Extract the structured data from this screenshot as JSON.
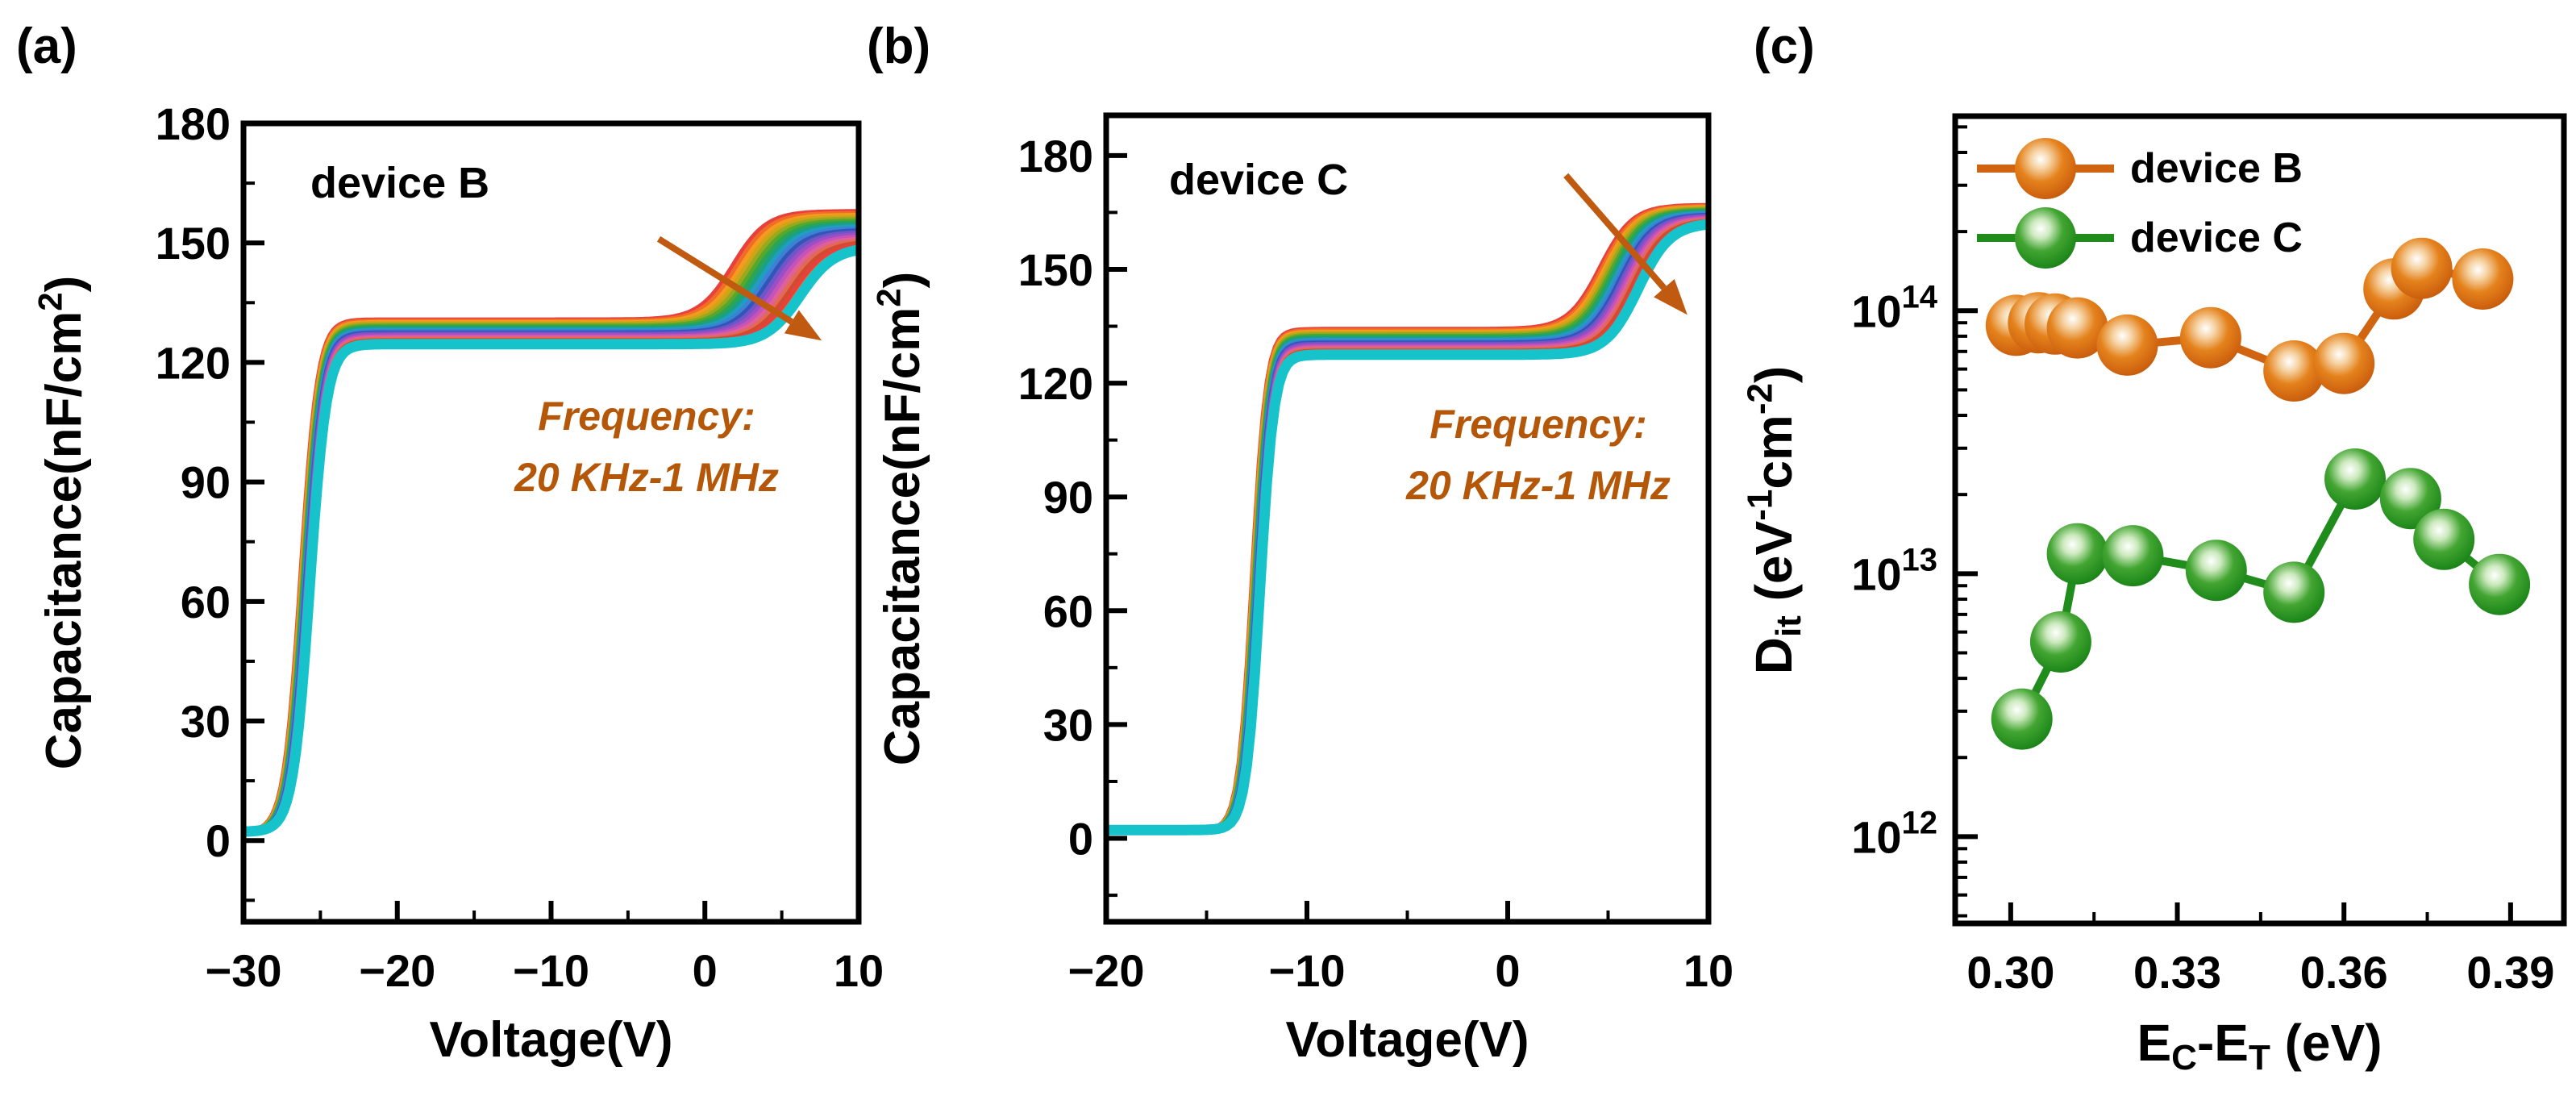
{
  "panels": {
    "a": {
      "letter": "(a)",
      "device_label": "device B",
      "annotation_line1": "Frequency:",
      "annotation_line2": "20 KHz-1 MHz"
    },
    "b": {
      "letter": "(b)",
      "device_label": "device C",
      "annotation_line1": "Frequency:",
      "annotation_line2": "20 KHz-1 MHz"
    },
    "c": {
      "letter": "(c)"
    }
  },
  "colors": {
    "annotation_text": "#b45708",
    "arrow": "#c05a10",
    "device_b": "#d06410",
    "device_c": "#1f8c1b",
    "axis": "#000000"
  },
  "chart_data": [
    {
      "type": "line",
      "panel": "a",
      "title": "device B",
      "xlabel": "Voltage(V)",
      "ylabel_segments": [
        [
          "Capacitance(nF/cm",
          ""
        ],
        [
          "2",
          "sup"
        ],
        [
          ")",
          ""
        ]
      ],
      "xlim": [
        -30,
        10
      ],
      "xticks": [
        -30,
        -20,
        -10,
        0,
        10
      ],
      "xminor": [
        -25,
        -15,
        -5,
        5
      ],
      "ylim": [
        -20.4,
        180
      ],
      "yticks": [
        0,
        30,
        60,
        90,
        120,
        150,
        180
      ],
      "yminor": [
        -15,
        15,
        45,
        75,
        105,
        135,
        165
      ],
      "annotation": [
        "Frequency:",
        "20 KHz-1 MHz"
      ],
      "arrow": {
        "x1": -3.0,
        "y1": 151,
        "x2": 7.6,
        "y2": 125.5
      },
      "curve_family": {
        "n": 20,
        "frequency_range": "20 KHz-1 MHz",
        "base": 2.2,
        "rise1_center_first": -26.3,
        "rise1_center_last": -25.7,
        "rise1_width": 0.55,
        "plateau_first": 130.8,
        "plateau_last": 124.6,
        "rise2_center_first": 1.8,
        "rise2_center_last": 6.2,
        "rise2_width": 1.1,
        "final_first": 158,
        "final_last": 149
      },
      "palette": [
        "#e8413c",
        "#f06c28",
        "#f59a1c",
        "#cfa418",
        "#9aa81e",
        "#55a82c",
        "#2aa455",
        "#1ba083",
        "#1f9ec4",
        "#3f7fd4",
        "#3056b8",
        "#6f55c8",
        "#9b4fc4",
        "#c653b8",
        "#e0609a",
        "#e06a55",
        "#d44a30"
      ],
      "last_curve_color": "#17c3cb",
      "curve_width": 5,
      "last_curve_width": 13
    },
    {
      "type": "line",
      "panel": "b",
      "title": "device C",
      "xlabel": "Voltage(V)",
      "ylabel_segments": [
        [
          "Capacitance(nF/cm",
          ""
        ],
        [
          "2",
          "sup"
        ],
        [
          ")",
          ""
        ]
      ],
      "xlim": [
        -20,
        10
      ],
      "xticks": [
        -20,
        -10,
        0,
        10
      ],
      "xminor": [
        -15,
        -5,
        5
      ],
      "ylim": [
        -22,
        190.6
      ],
      "yticks": [
        0,
        30,
        60,
        90,
        120,
        150,
        180
      ],
      "yminor": [
        -15,
        15,
        45,
        75,
        105,
        135,
        165
      ],
      "annotation": [
        "Frequency:",
        "20 KHz-1 MHz"
      ],
      "arrow": {
        "x1": 2.9,
        "y1": 174.8,
        "x2": 8.95,
        "y2": 138
      },
      "curve_family": {
        "n": 20,
        "frequency_range": "20 KHz-1 MHz",
        "base": 2.2,
        "rise1_center_first": -12.75,
        "rise1_center_last": -12.35,
        "rise1_width": 0.35,
        "plateau_first": 134.3,
        "plateau_last": 127.5,
        "rise2_center_first": 4.6,
        "rise2_center_last": 6.5,
        "rise2_width": 0.8,
        "final_first": 167,
        "final_last": 162.3
      },
      "palette": [
        "#e8413c",
        "#f06c28",
        "#f59a1c",
        "#cfa418",
        "#9aa81e",
        "#55a82c",
        "#2aa455",
        "#1ba083",
        "#1f9ec4",
        "#3f7fd4",
        "#3056b8",
        "#6f55c8",
        "#9b4fc4",
        "#c653b8",
        "#e0609a",
        "#e06a55",
        "#d44a30"
      ],
      "last_curve_color": "#17c3cb",
      "curve_width": 5,
      "last_curve_width": 13
    },
    {
      "type": "scatter",
      "panel": "c",
      "xlabel_segments": [
        [
          "E",
          ""
        ],
        [
          "C",
          "sub"
        ],
        [
          "-E",
          ""
        ],
        [
          "T",
          "sub"
        ],
        [
          " (eV)",
          ""
        ]
      ],
      "ylabel_segments": [
        [
          "D",
          ""
        ],
        [
          "it",
          "sub"
        ],
        [
          " (eV",
          ""
        ],
        [
          "-1",
          "sup"
        ],
        [
          "cm",
          ""
        ],
        [
          "-2",
          "sup"
        ],
        [
          ")",
          ""
        ]
      ],
      "xlim": [
        0.29,
        0.3996
      ],
      "xticks": [
        0.3,
        0.33,
        0.36,
        0.39
      ],
      "xminor": [
        0.315,
        0.345,
        0.375
      ],
      "ylog_exp_lim": [
        11.67,
        14.74
      ],
      "yticks_exp": [
        12,
        13,
        14
      ],
      "legend_position": "top-left",
      "series": [
        {
          "name": "device B",
          "color": "#d06410",
          "x": [
            0.301,
            0.305,
            0.308,
            0.312,
            0.321,
            0.336,
            0.351,
            0.36,
            0.369,
            0.374,
            0.385
          ],
          "y": [
            88000000000000.0,
            90000000000000.0,
            89000000000000.0,
            86000000000000.0,
            74000000000000.0,
            79000000000000.0,
            59000000000000.0,
            63000000000000.0,
            121000000000000.0,
            145000000000000.0,
            132000000000000.0
          ]
        },
        {
          "name": "device C",
          "color": "#1f8c1b",
          "x": [
            0.302,
            0.309,
            0.312,
            0.322,
            0.337,
            0.351,
            0.362,
            0.372,
            0.378,
            0.388
          ],
          "y": [
            2800000000000.0,
            5500000000000.0,
            11900000000000.0,
            11700000000000.0,
            10300000000000.0,
            8500000000000.0,
            22900000000000.0,
            19300000000000.0,
            13500000000000.0,
            9100000000000.0
          ]
        }
      ]
    }
  ]
}
